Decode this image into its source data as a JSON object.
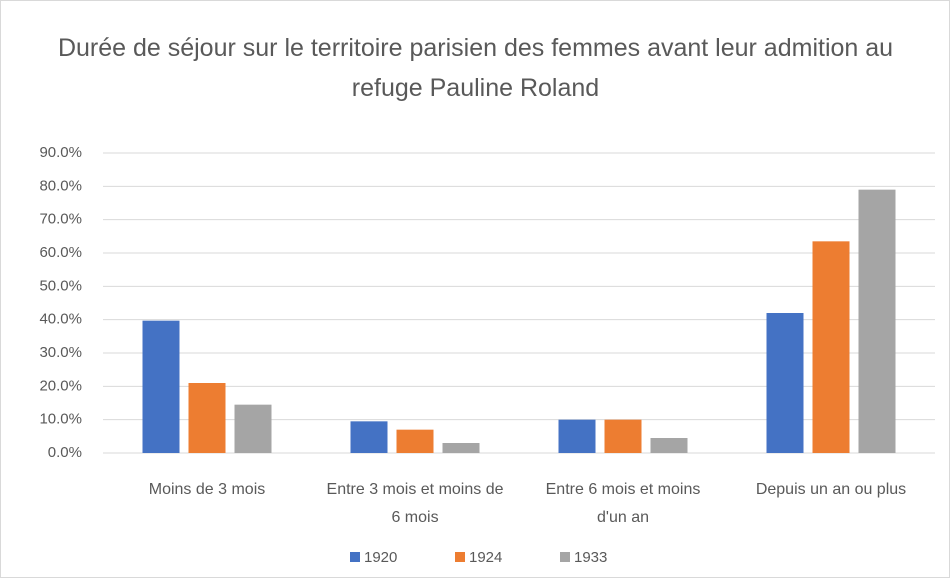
{
  "chart_data": {
    "type": "bar",
    "title": "Durée de séjour sur le territoire parisien des femmes avant leur admition au refuge Pauline Roland",
    "categories": [
      "Moins de 3 mois",
      "Entre 3 mois et moins de 6 mois",
      "Entre 6 mois et moins d'un an",
      "Depuis un an ou plus"
    ],
    "series": [
      {
        "name": "1920",
        "color": "#4472c4",
        "values": [
          39.7,
          9.5,
          10,
          42
        ]
      },
      {
        "name": "1924",
        "color": "#ed7d31",
        "values": [
          21,
          7,
          10,
          63.5
        ]
      },
      {
        "name": "1933",
        "color": "#a5a5a5",
        "values": [
          14.5,
          3,
          4.5,
          79
        ]
      }
    ],
    "ylim": [
      0,
      90
    ],
    "yticks": [
      {
        "value": 0,
        "label": "0.0%"
      },
      {
        "value": 10,
        "label": "10.0%"
      },
      {
        "value": 20,
        "label": "20.0%"
      },
      {
        "value": 30,
        "label": "30.0%"
      },
      {
        "value": 40,
        "label": "40.0%"
      },
      {
        "value": 50,
        "label": "50.0%"
      },
      {
        "value": 60,
        "label": "60.0%"
      },
      {
        "value": 70,
        "label": "70.0%"
      },
      {
        "value": 80,
        "label": "80.0%"
      },
      {
        "value": 90,
        "label": "90.0%"
      }
    ],
    "grid": true,
    "legend": "bottom"
  }
}
